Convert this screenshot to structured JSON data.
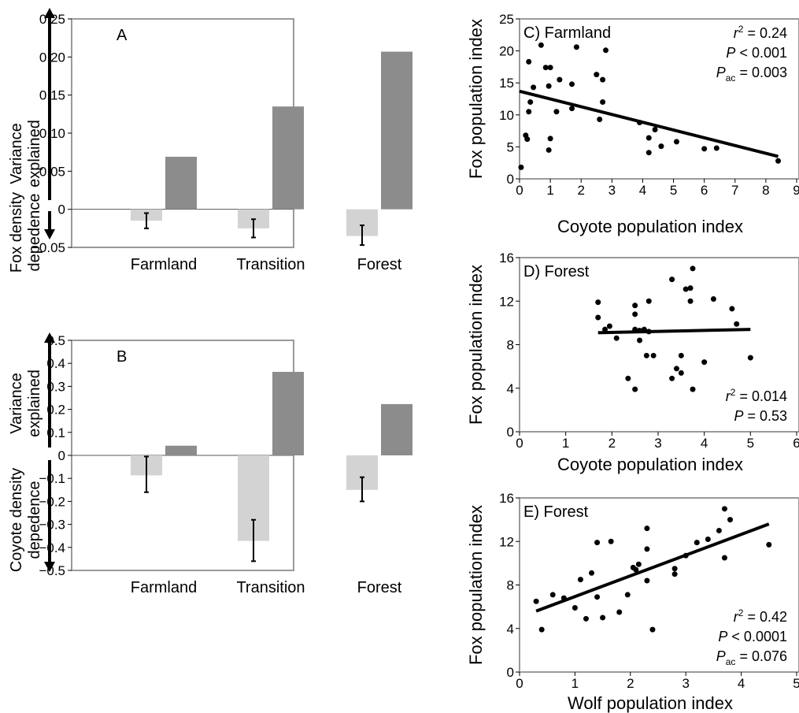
{
  "chart_data": [
    {
      "id": "A",
      "type": "bar",
      "panel_label": "A",
      "categories": [
        "Farmland",
        "Transition",
        "Forest"
      ],
      "ylim": [
        -0.05,
        0.25
      ],
      "yticks": [
        "0.25",
        "0.20",
        "0.15",
        "0.10",
        "0.05",
        "0",
        "−0.05"
      ],
      "ytick_values": [
        0.25,
        0.2,
        0.15,
        0.1,
        0.05,
        0,
        -0.05
      ],
      "upper_label": [
        "Variance",
        "explained"
      ],
      "lower_label": [
        "Fox density",
        "depedence"
      ],
      "series": [
        {
          "values": [
            -0.015,
            -0.025,
            -0.035
          ],
          "errors": [
            [
              -0.025,
              -0.005
            ],
            [
              -0.037,
              -0.013
            ],
            [
              -0.047,
              -0.021
            ]
          ],
          "color": "#d3d3d3"
        },
        {
          "values": [
            0.069,
            0.135,
            0.207
          ],
          "color": "#8c8c8c"
        }
      ]
    },
    {
      "id": "B",
      "type": "bar",
      "panel_label": "B",
      "categories": [
        "Farmland",
        "Transition",
        "Forest"
      ],
      "ylim": [
        -0.5,
        0.5
      ],
      "yticks": [
        "0.5",
        "0.4",
        "0.3",
        "0.2",
        "0.1",
        "0",
        "−0.1",
        "−0.2",
        "−0.3",
        "−0.4",
        "−0.5"
      ],
      "ytick_values": [
        0.5,
        0.4,
        0.3,
        0.2,
        0.1,
        0,
        -0.1,
        -0.2,
        -0.3,
        -0.4,
        -0.5
      ],
      "upper_label": [
        "Variance",
        "explained"
      ],
      "lower_label": [
        "Coyote density",
        "depedence"
      ],
      "series": [
        {
          "values": [
            -0.087,
            -0.372,
            -0.15
          ],
          "errors": [
            [
              -0.16,
              -0.005
            ],
            [
              -0.46,
              -0.28
            ],
            [
              -0.2,
              -0.095
            ]
          ],
          "color": "#d3d3d3"
        },
        {
          "values": [
            0.042,
            0.363,
            0.223
          ],
          "color": "#8c8c8c"
        }
      ]
    },
    {
      "id": "C",
      "type": "scatter",
      "panel_label": "C) Farmland",
      "xlabel": "Coyote population index",
      "ylabel": "Fox population index",
      "xlim": [
        0,
        9
      ],
      "ylim": [
        0,
        25
      ],
      "xticks": [
        0,
        1,
        2,
        3,
        4,
        5,
        6,
        7,
        8,
        9
      ],
      "yticks": [
        0,
        5,
        10,
        15,
        20,
        25
      ],
      "stats": [
        {
          "sym": "r",
          "sup": "2",
          "op": "=",
          "val": "0.24"
        },
        {
          "sym": "P",
          "op": "<",
          "val": "0.001"
        },
        {
          "sym": "P",
          "sub": "ac",
          "op": "=",
          "val": "0.003"
        }
      ],
      "stats_pos": "top-right",
      "fit": [
        [
          0,
          13.7
        ],
        [
          8.4,
          3.5
        ]
      ],
      "points": [
        [
          0.05,
          1.8
        ],
        [
          0.2,
          6.8
        ],
        [
          0.25,
          6.2
        ],
        [
          0.3,
          10.5
        ],
        [
          0.3,
          18.3
        ],
        [
          0.35,
          12.0
        ],
        [
          0.45,
          14.3
        ],
        [
          0.7,
          20.9
        ],
        [
          0.85,
          17.4
        ],
        [
          1.0,
          17.4
        ],
        [
          0.95,
          14.5
        ],
        [
          1.0,
          6.3
        ],
        [
          0.95,
          4.5
        ],
        [
          1.2,
          10.5
        ],
        [
          1.3,
          15.5
        ],
        [
          1.7,
          11.0
        ],
        [
          1.7,
          14.8
        ],
        [
          1.85,
          20.6
        ],
        [
          2.6,
          9.3
        ],
        [
          2.5,
          16.3
        ],
        [
          2.7,
          15.5
        ],
        [
          2.7,
          12.0
        ],
        [
          2.8,
          20.1
        ],
        [
          3.9,
          8.8
        ],
        [
          4.2,
          6.4
        ],
        [
          4.2,
          4.1
        ],
        [
          4.4,
          7.7
        ],
        [
          4.6,
          5.1
        ],
        [
          5.1,
          5.8
        ],
        [
          6.0,
          4.7
        ],
        [
          6.4,
          4.8
        ],
        [
          8.4,
          2.8
        ]
      ]
    },
    {
      "id": "D",
      "type": "scatter",
      "panel_label": "D) Forest",
      "xlabel": "Coyote population index",
      "ylabel": "Fox population index",
      "xlim": [
        0,
        6
      ],
      "ylim": [
        0,
        16
      ],
      "xticks": [
        0,
        1,
        2,
        3,
        4,
        5,
        6
      ],
      "yticks": [
        0,
        4,
        8,
        12,
        16
      ],
      "stats": [
        {
          "sym": "r",
          "sup": "2",
          "op": "=",
          "val": "0.014"
        },
        {
          "sym": "P",
          "op": "=",
          "val": "0.53"
        }
      ],
      "stats_pos": "bottom-right",
      "fit": [
        [
          1.7,
          9.1
        ],
        [
          5.0,
          9.4
        ]
      ],
      "points": [
        [
          1.7,
          11.9
        ],
        [
          1.7,
          10.5
        ],
        [
          1.85,
          9.4
        ],
        [
          1.95,
          9.7
        ],
        [
          2.1,
          8.6
        ],
        [
          2.35,
          4.9
        ],
        [
          2.5,
          11.6
        ],
        [
          2.5,
          10.8
        ],
        [
          2.5,
          9.4
        ],
        [
          2.5,
          3.9
        ],
        [
          2.6,
          8.4
        ],
        [
          2.6,
          9.3
        ],
        [
          2.7,
          9.4
        ],
        [
          2.75,
          7.0
        ],
        [
          2.8,
          12.0
        ],
        [
          2.8,
          9.2
        ],
        [
          2.9,
          7.0
        ],
        [
          3.3,
          14.0
        ],
        [
          3.3,
          4.9
        ],
        [
          3.4,
          5.8
        ],
        [
          3.5,
          7.0
        ],
        [
          3.5,
          5.4
        ],
        [
          3.6,
          13.1
        ],
        [
          3.7,
          13.2
        ],
        [
          3.7,
          12.0
        ],
        [
          3.75,
          15.0
        ],
        [
          3.75,
          3.9
        ],
        [
          4.0,
          6.4
        ],
        [
          4.2,
          12.2
        ],
        [
          4.6,
          11.3
        ],
        [
          4.7,
          9.9
        ],
        [
          5.0,
          6.8
        ]
      ]
    },
    {
      "id": "E",
      "type": "scatter",
      "panel_label": "E) Forest",
      "xlabel": "Wolf population index",
      "ylabel": "Fox population index",
      "xlim": [
        0,
        5
      ],
      "ylim": [
        0,
        16
      ],
      "xticks": [
        0,
        1,
        2,
        3,
        4,
        5
      ],
      "yticks": [
        0,
        4,
        8,
        12,
        16
      ],
      "stats": [
        {
          "sym": "r",
          "sup": "2",
          "op": "=",
          "val": "0.42"
        },
        {
          "sym": "P",
          "op": "<",
          "val": "0.0001"
        },
        {
          "sym": "P",
          "sub": "ac",
          "op": "=",
          "val": "0.076"
        }
      ],
      "stats_pos": "bottom-right",
      "fit": [
        [
          0.3,
          5.6
        ],
        [
          4.5,
          13.6
        ]
      ],
      "points": [
        [
          0.3,
          6.5
        ],
        [
          0.4,
          3.9
        ],
        [
          0.6,
          7.1
        ],
        [
          0.8,
          6.8
        ],
        [
          1.0,
          5.9
        ],
        [
          1.1,
          8.5
        ],
        [
          1.2,
          4.9
        ],
        [
          1.3,
          9.1
        ],
        [
          1.4,
          11.9
        ],
        [
          1.4,
          6.9
        ],
        [
          1.5,
          5.0
        ],
        [
          1.65,
          12.0
        ],
        [
          1.8,
          5.5
        ],
        [
          1.95,
          7.1
        ],
        [
          2.05,
          9.6
        ],
        [
          2.1,
          9.4
        ],
        [
          2.15,
          9.9
        ],
        [
          2.3,
          11.3
        ],
        [
          2.3,
          13.2
        ],
        [
          2.3,
          8.4
        ],
        [
          2.4,
          3.9
        ],
        [
          2.8,
          9.0
        ],
        [
          2.8,
          9.5
        ],
        [
          3.0,
          10.7
        ],
        [
          3.2,
          11.9
        ],
        [
          3.4,
          12.2
        ],
        [
          3.6,
          13.0
        ],
        [
          3.7,
          15.0
        ],
        [
          3.7,
          10.5
        ],
        [
          3.8,
          14.0
        ],
        [
          4.5,
          11.7
        ]
      ]
    }
  ]
}
